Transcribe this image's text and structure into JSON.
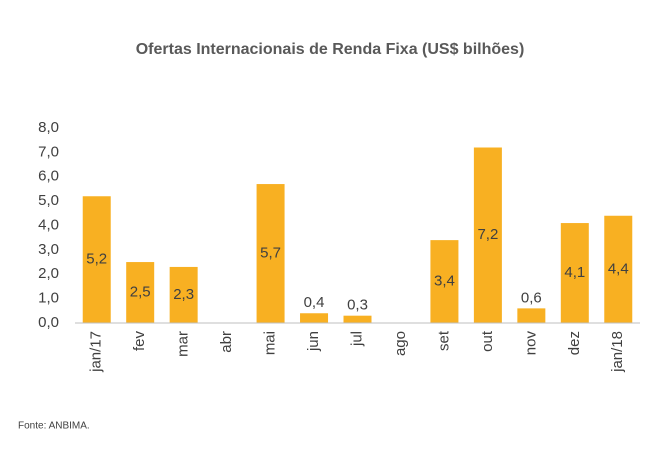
{
  "chart_data": {
    "type": "bar",
    "title": "Ofertas  Internacionais  de Renda Fixa (US$ bilhões)",
    "categories": [
      "jan/17",
      "fev",
      "mar",
      "abr",
      "mai",
      "jun",
      "jul",
      "ago",
      "set",
      "out",
      "nov",
      "dez",
      "jan/18"
    ],
    "values": [
      5.2,
      2.5,
      2.3,
      null,
      5.7,
      0.4,
      0.3,
      null,
      3.4,
      7.2,
      0.6,
      4.1,
      4.4
    ],
    "value_labels": [
      "5,2",
      "2,5",
      "2,3",
      null,
      "5,7",
      "0,4",
      "0,3",
      null,
      "3,4",
      "7,2",
      "0,6",
      "4,1",
      "4,4"
    ],
    "color": "#f8b022",
    "ylim": [
      0,
      8
    ],
    "yticks": [
      {
        "value": 0,
        "label": "0,0"
      },
      {
        "value": 1,
        "label": "1,0"
      },
      {
        "value": 2,
        "label": "2,0"
      },
      {
        "value": 3,
        "label": "3,0"
      },
      {
        "value": 4,
        "label": "4,0"
      },
      {
        "value": 5,
        "label": "5,0"
      },
      {
        "value": 6,
        "label": "6,0"
      },
      {
        "value": 7,
        "label": "7,0"
      },
      {
        "value": 8,
        "label": "8,0"
      }
    ],
    "grid": false,
    "source": "Fonte:  ANBIMA."
  }
}
